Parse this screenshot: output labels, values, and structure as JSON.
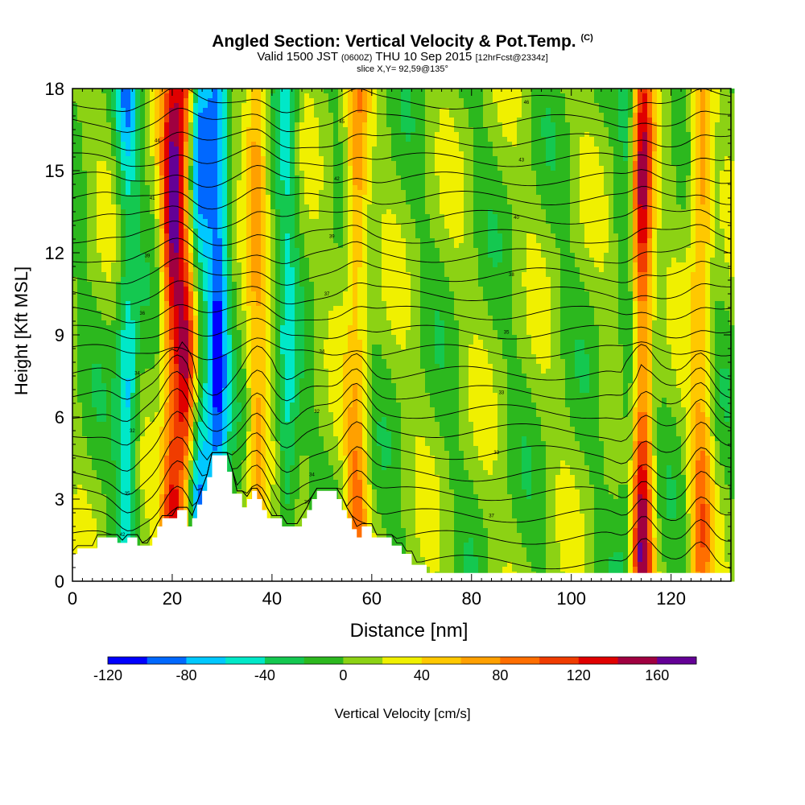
{
  "header": {
    "title_main": "Angled Section: Vertical Velocity & Pot.Temp.",
    "title_suffix": "(C)",
    "valid_pre": "Valid 1500 JST",
    "valid_utc": "(0600Z)",
    "valid_date": "THU 10 Sep 2015",
    "valid_fcst": "[12hrFcst@2334z]",
    "slice": "slice X,Y= 92,59@135°"
  },
  "chart_data": {
    "type": "heatmap",
    "xlabel": "Distance [nm]",
    "ylabel": "Height [Kft MSL]",
    "xlim": [
      0,
      132
    ],
    "ylim": [
      0,
      18
    ],
    "xticks": [
      0,
      20,
      40,
      60,
      80,
      100,
      120
    ],
    "yticks": [
      0,
      3,
      6,
      9,
      12,
      15,
      18
    ],
    "colorbar": {
      "label": "Vertical Velocity [cm/s]",
      "range": [
        -120,
        180
      ],
      "step": 20,
      "tick_values": [
        -120,
        -80,
        -40,
        0,
        40,
        80,
        120,
        160
      ],
      "colors": [
        "#0000ff",
        "#0068ff",
        "#00c8ff",
        "#00e8c8",
        "#14c850",
        "#2cb81e",
        "#8cd214",
        "#f0f000",
        "#ffc800",
        "#ffa000",
        "#ff6e00",
        "#f03c00",
        "#e00000",
        "#a00040",
        "#640096"
      ]
    },
    "updrafts": [
      {
        "distance": 20,
        "peak_cm_s": 150
      },
      {
        "distance": 23,
        "peak_cm_s": 130
      },
      {
        "distance": 37,
        "peak_cm_s": 70
      },
      {
        "distance": 57,
        "peak_cm_s": 80
      },
      {
        "distance": 114,
        "peak_cm_s": 170
      },
      {
        "distance": 126,
        "peak_cm_s": 80
      }
    ],
    "downdrafts": [
      {
        "distance": 11,
        "peak_cm_s": -80
      },
      {
        "distance": 25,
        "peak_cm_s": -100
      },
      {
        "distance": 29,
        "peak_cm_s": -120
      },
      {
        "distance": 43,
        "peak_cm_s": -60
      },
      {
        "distance": 112,
        "peak_cm_s": -60
      }
    ],
    "terrain_kft": [
      [
        0,
        0.0
      ],
      [
        0,
        1.0
      ],
      [
        1,
        1.0
      ],
      [
        1,
        1.2
      ],
      [
        5,
        1.2
      ],
      [
        5,
        1.6
      ],
      [
        9,
        1.6
      ],
      [
        9,
        1.4
      ],
      [
        11,
        1.4
      ],
      [
        11,
        1.6
      ],
      [
        13,
        1.6
      ],
      [
        13,
        1.3
      ],
      [
        16,
        1.3
      ],
      [
        16,
        1.6
      ],
      [
        17,
        1.6
      ],
      [
        17,
        2.0
      ],
      [
        18,
        2.0
      ],
      [
        18,
        2.3
      ],
      [
        21,
        2.3
      ],
      [
        21,
        2.6
      ],
      [
        23,
        2.6
      ],
      [
        23,
        2.0
      ],
      [
        24,
        2.0
      ],
      [
        24,
        2.3
      ],
      [
        25,
        2.3
      ],
      [
        25,
        2.8
      ],
      [
        26,
        2.8
      ],
      [
        26,
        3.3
      ],
      [
        27,
        3.3
      ],
      [
        27,
        3.8
      ],
      [
        28,
        3.8
      ],
      [
        28,
        4.6
      ],
      [
        31,
        4.6
      ],
      [
        31,
        4.0
      ],
      [
        32,
        4.0
      ],
      [
        32,
        3.2
      ],
      [
        34,
        3.2
      ],
      [
        34,
        2.7
      ],
      [
        35,
        2.7
      ],
      [
        35,
        3.0
      ],
      [
        36,
        3.0
      ],
      [
        36,
        3.3
      ],
      [
        37,
        3.3
      ],
      [
        37,
        3.0
      ],
      [
        38,
        3.0
      ],
      [
        38,
        2.6
      ],
      [
        39,
        2.6
      ],
      [
        39,
        2.3
      ],
      [
        42,
        2.3
      ],
      [
        42,
        2.0
      ],
      [
        46,
        2.0
      ],
      [
        46,
        2.3
      ],
      [
        47,
        2.3
      ],
      [
        47,
        2.6
      ],
      [
        48,
        2.6
      ],
      [
        48,
        3.0
      ],
      [
        49,
        3.0
      ],
      [
        49,
        3.3
      ],
      [
        53,
        3.3
      ],
      [
        53,
        3.0
      ],
      [
        54,
        3.0
      ],
      [
        54,
        2.6
      ],
      [
        55,
        2.6
      ],
      [
        55,
        2.3
      ],
      [
        56,
        2.3
      ],
      [
        56,
        1.9
      ],
      [
        57,
        1.9
      ],
      [
        57,
        1.6
      ],
      [
        58,
        1.6
      ],
      [
        58,
        2.0
      ],
      [
        60,
        2.0
      ],
      [
        60,
        1.6
      ],
      [
        64,
        1.6
      ],
      [
        64,
        1.3
      ],
      [
        66,
        1.3
      ],
      [
        66,
        1.0
      ],
      [
        68,
        1.0
      ],
      [
        68,
        0.6
      ],
      [
        71,
        0.6
      ],
      [
        71,
        0.3
      ],
      [
        132,
        0.3
      ],
      [
        132,
        0.0
      ]
    ],
    "potential_temperature_contours_c": [
      {
        "base_kft": 0.7,
        "value": 42
      },
      {
        "base_kft": 1.6,
        "value": 39
      },
      {
        "base_kft": 2.4,
        "value": 37
      },
      {
        "base_kft": 3.2,
        "value": 35
      },
      {
        "base_kft": 3.9,
        "value": 34
      },
      {
        "base_kft": 4.7,
        "value": 33
      },
      {
        "base_kft": 5.5,
        "value": 32
      },
      {
        "base_kft": 6.2,
        "value": 32
      },
      {
        "base_kft": 6.9,
        "value": 33
      },
      {
        "base_kft": 7.6,
        "value": 34
      },
      {
        "base_kft": 8.4,
        "value": 34
      },
      {
        "base_kft": 9.1,
        "value": 35
      },
      {
        "base_kft": 9.8,
        "value": 36
      },
      {
        "base_kft": 10.5,
        "value": 37
      },
      {
        "base_kft": 11.2,
        "value": 38
      },
      {
        "base_kft": 11.9,
        "value": 39
      },
      {
        "base_kft": 12.6,
        "value": 39
      },
      {
        "base_kft": 13.3,
        "value": 40
      },
      {
        "base_kft": 14.0,
        "value": 41
      },
      {
        "base_kft": 14.7,
        "value": 42
      },
      {
        "base_kft": 15.4,
        "value": 43
      },
      {
        "base_kft": 16.1,
        "value": 44
      },
      {
        "base_kft": 16.8,
        "value": 45
      },
      {
        "base_kft": 17.5,
        "value": 46
      }
    ]
  }
}
